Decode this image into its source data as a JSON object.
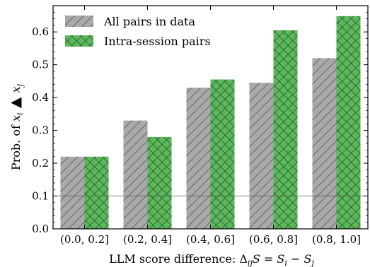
{
  "chart_data": {
    "type": "bar",
    "categories": [
      "(0.0, 0.2]",
      "(0.2, 0.4]",
      "(0.4, 0.6]",
      "(0.6, 0.8]",
      "(0.8, 1.0]"
    ],
    "series": [
      {
        "name": "All pairs in data",
        "values": [
          0.22,
          0.33,
          0.43,
          0.445,
          0.52
        ],
        "color": "#a9a9a9",
        "pattern": "diagonal-hatch"
      },
      {
        "name": "Intra-session pairs",
        "values": [
          0.22,
          0.28,
          0.455,
          0.605,
          0.648
        ],
        "color": "#5cb85c",
        "pattern": "cross-hatch"
      }
    ],
    "title": "",
    "xlabel": "LLM score difference: Δ_ij S = S_i − S_j",
    "ylabel": "Prob. of x_i ▲ x_j",
    "ylim": [
      0,
      0.68
    ],
    "yticks": [
      "0.0",
      "0.1",
      "0.2",
      "0.3",
      "0.4",
      "0.5",
      "0.6"
    ],
    "grid": false,
    "reference_line": 0.1,
    "legend_position": "top-left"
  }
}
